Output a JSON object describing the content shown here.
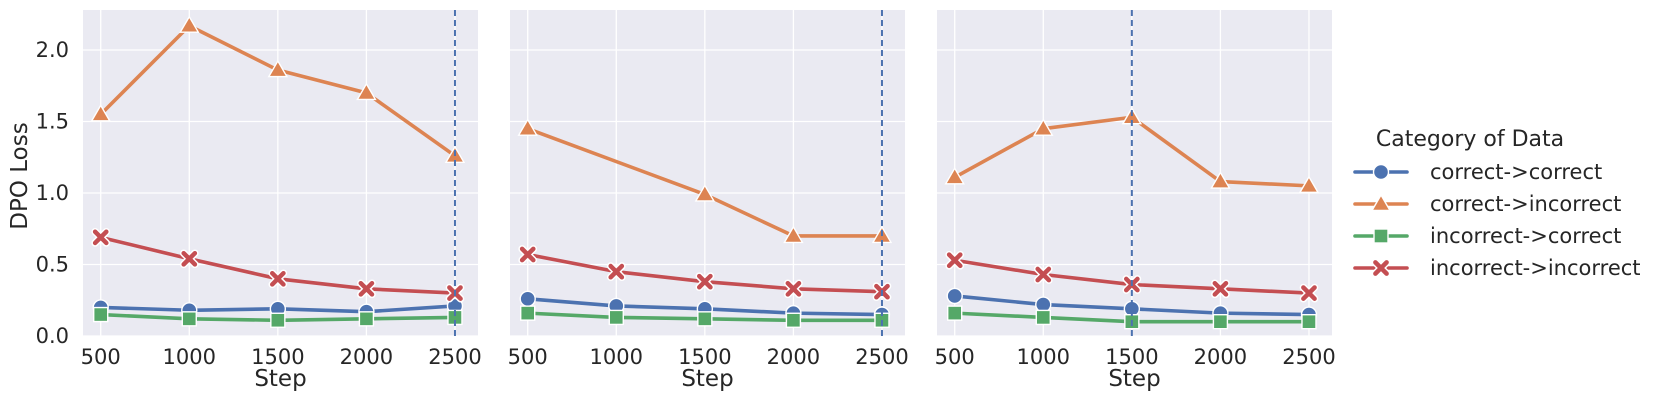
{
  "chart_data": {
    "type": "line",
    "ylabel": "DPO Loss",
    "xlabel": "Step",
    "x": [
      500,
      1000,
      1500,
      2000,
      2500
    ],
    "x_ticks": [
      "500",
      "1000",
      "1500",
      "2000",
      "2500"
    ],
    "y_ticks": [
      "0.0",
      "0.5",
      "1.0",
      "1.5",
      "2.0"
    ],
    "xlim": [
      400,
      2630
    ],
    "ylim": [
      0,
      2.28
    ],
    "grid": true,
    "legend": {
      "title": "Category of Data",
      "placement": "right",
      "entries": [
        "correct->correct",
        "correct->incorrect",
        "incorrect->correct",
        "incorrect->incorrect"
      ]
    },
    "colors": {
      "correct->correct": "#4c72b0",
      "correct->incorrect": "#dd8452",
      "incorrect->correct": "#55a868",
      "incorrect->incorrect": "#c44e52",
      "background": "#eaeaf2",
      "vline": "#4c72b0"
    },
    "markers": {
      "correct->correct": "circle",
      "correct->incorrect": "triangle",
      "incorrect->correct": "square",
      "incorrect->incorrect": "x"
    },
    "panels": [
      {
        "vline_x": 2500,
        "series": [
          {
            "name": "correct->correct",
            "values": [
              0.2,
              0.18,
              0.19,
              0.17,
              0.21
            ]
          },
          {
            "name": "correct->incorrect",
            "values": [
              1.55,
              2.17,
              1.86,
              1.7,
              1.26
            ]
          },
          {
            "name": "incorrect->correct",
            "values": [
              0.15,
              0.12,
              0.11,
              0.12,
              0.13
            ]
          },
          {
            "name": "incorrect->incorrect",
            "values": [
              0.69,
              0.54,
              0.4,
              0.33,
              0.3
            ]
          }
        ]
      },
      {
        "vline_x": 2500,
        "series": [
          {
            "name": "correct->correct",
            "values": [
              0.26,
              0.21,
              0.19,
              0.16,
              0.15
            ]
          },
          {
            "name": "correct->incorrect",
            "values": [
              1.45,
              null,
              0.99,
              0.7,
              0.7
            ]
          },
          {
            "name": "incorrect->correct",
            "values": [
              0.16,
              0.13,
              0.12,
              0.11,
              0.11
            ]
          },
          {
            "name": "incorrect->incorrect",
            "values": [
              0.57,
              0.45,
              0.38,
              0.33,
              0.31
            ]
          }
        ]
      },
      {
        "vline_x": 1500,
        "series": [
          {
            "name": "correct->correct",
            "values": [
              0.28,
              0.22,
              0.19,
              0.16,
              0.15
            ]
          },
          {
            "name": "correct->incorrect",
            "values": [
              1.11,
              1.45,
              1.53,
              1.08,
              1.05
            ]
          },
          {
            "name": "incorrect->correct",
            "values": [
              0.16,
              0.13,
              0.1,
              0.1,
              0.1
            ]
          },
          {
            "name": "incorrect->incorrect",
            "values": [
              0.53,
              0.43,
              0.36,
              0.33,
              0.3
            ]
          }
        ]
      }
    ]
  }
}
